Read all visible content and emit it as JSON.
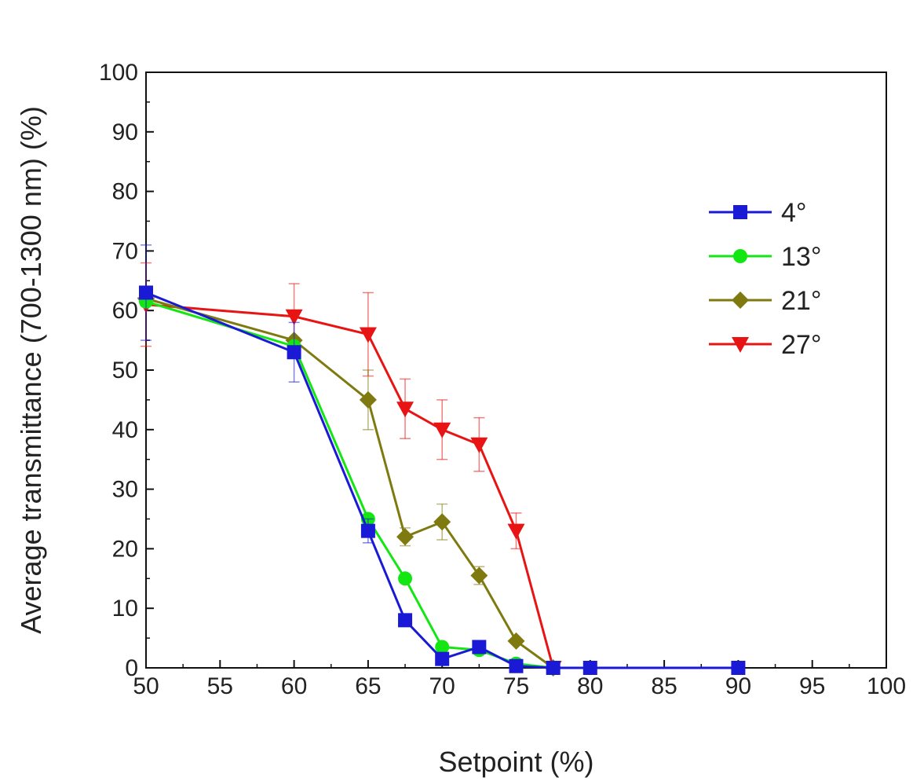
{
  "chart_data": {
    "type": "line",
    "xlabel": "Setpoint (%)",
    "ylabel": "Average transmittance (700-1300 nm) (%)",
    "xlim": [
      50,
      100
    ],
    "ylim": [
      0,
      100
    ],
    "xticks": [
      50,
      55,
      60,
      65,
      70,
      75,
      80,
      85,
      90,
      95,
      100
    ],
    "yticks": [
      0,
      10,
      20,
      30,
      40,
      50,
      60,
      70,
      80,
      90,
      100
    ],
    "grid": false,
    "legend_position": "right",
    "series": [
      {
        "name": "4°",
        "color": "#1a1ad6",
        "marker": "square",
        "x": [
          50,
          60,
          65,
          67.5,
          70,
          72.5,
          75,
          77.5,
          80,
          90
        ],
        "y": [
          63,
          53,
          23,
          8,
          1.5,
          3.5,
          0.3,
          0,
          0,
          0
        ],
        "err": [
          8,
          5,
          2,
          0,
          0,
          0,
          0,
          0,
          0,
          0
        ]
      },
      {
        "name": "13°",
        "color": "#14e614",
        "marker": "circle",
        "x": [
          50,
          60,
          65,
          67.5,
          70,
          72.5,
          75,
          77.5
        ],
        "y": [
          61.5,
          54,
          25,
          15,
          3.5,
          3,
          0.7,
          0
        ],
        "err": [
          0,
          0,
          0,
          0,
          0,
          0,
          0,
          0
        ]
      },
      {
        "name": "21°",
        "color": "#7f7a10",
        "marker": "diamond",
        "x": [
          50,
          60,
          65,
          67.5,
          70,
          72.5,
          75,
          77.5
        ],
        "y": [
          62,
          55,
          45,
          22,
          24.5,
          15.5,
          4.5,
          0
        ],
        "err": [
          0,
          0,
          5,
          1.5,
          3,
          1.5,
          0,
          0
        ]
      },
      {
        "name": "27°",
        "color": "#e81414",
        "marker": "triangle-down",
        "x": [
          50,
          60,
          65,
          67.5,
          70,
          72.5,
          75,
          77.5
        ],
        "y": [
          61,
          59,
          56,
          43.5,
          40,
          37.5,
          23,
          0
        ],
        "err": [
          7,
          5.5,
          7,
          5,
          5,
          4.5,
          3,
          0
        ]
      }
    ]
  }
}
